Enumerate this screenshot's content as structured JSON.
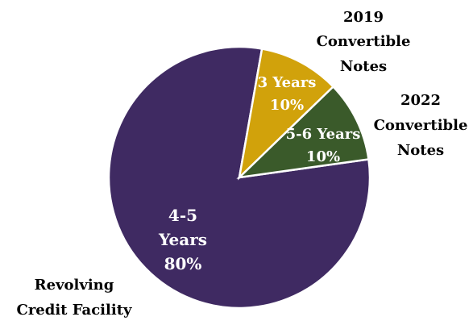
{
  "chart_data": {
    "type": "pie",
    "slices": [
      {
        "name": "Revolving Credit Facility",
        "name_lines": [
          "Revolving",
          "Credit Facility"
        ],
        "value": 80,
        "inner_lines": [
          "4-5",
          "Years",
          "80%"
        ],
        "color": "#3F2A62"
      },
      {
        "name": "2019 Convertible Notes",
        "name_lines": [
          "2019",
          "Convertible",
          "Notes"
        ],
        "value": 10,
        "inner_lines": [
          "3 Years",
          "10%"
        ],
        "color": "#D1A20B"
      },
      {
        "name": "2022 Convertible Notes",
        "name_lines": [
          "2022",
          "Convertible",
          "Notes"
        ],
        "value": 10,
        "inner_lines": [
          "5-6 Years",
          "10%"
        ],
        "color": "#3A5A2A"
      }
    ]
  }
}
